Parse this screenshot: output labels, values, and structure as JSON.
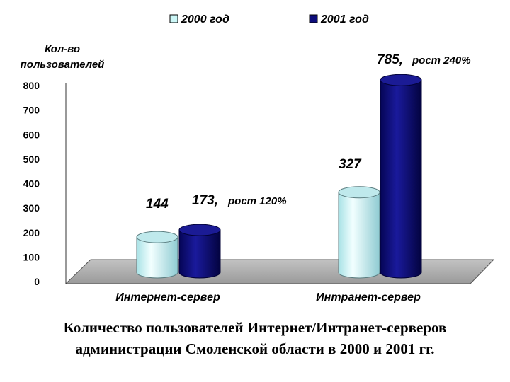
{
  "chart_data": {
    "type": "bar",
    "style": "3d-cylinder",
    "ylabel_line1": "Кол-во",
    "ylabel_line2": "пользователей",
    "ylim": [
      0,
      800
    ],
    "yticks": [
      "0",
      "100",
      "200",
      "300",
      "400",
      "500",
      "600",
      "700",
      "800"
    ],
    "categories": [
      "Интернет-сервер",
      "Интранет-сервер"
    ],
    "series": [
      {
        "name": "2000 год",
        "values": [
          144,
          327
        ],
        "color": "#ccf7f7"
      },
      {
        "name": "2001 год",
        "values": [
          173,
          785
        ],
        "color": "#0c0c7a"
      }
    ],
    "annotations": [
      {
        "value": "144",
        "suffix": ""
      },
      {
        "value": "173,",
        "suffix": "рост 120%"
      },
      {
        "value": "327",
        "suffix": ""
      },
      {
        "value": "785,",
        "suffix": "рост 240%"
      }
    ],
    "legend_position": "top",
    "grid": false
  },
  "caption": {
    "line1": "Количество пользователей  Интернет/Интранет-серверов",
    "line2": "администрации Смоленской области в 2000 и 2001 гг."
  }
}
